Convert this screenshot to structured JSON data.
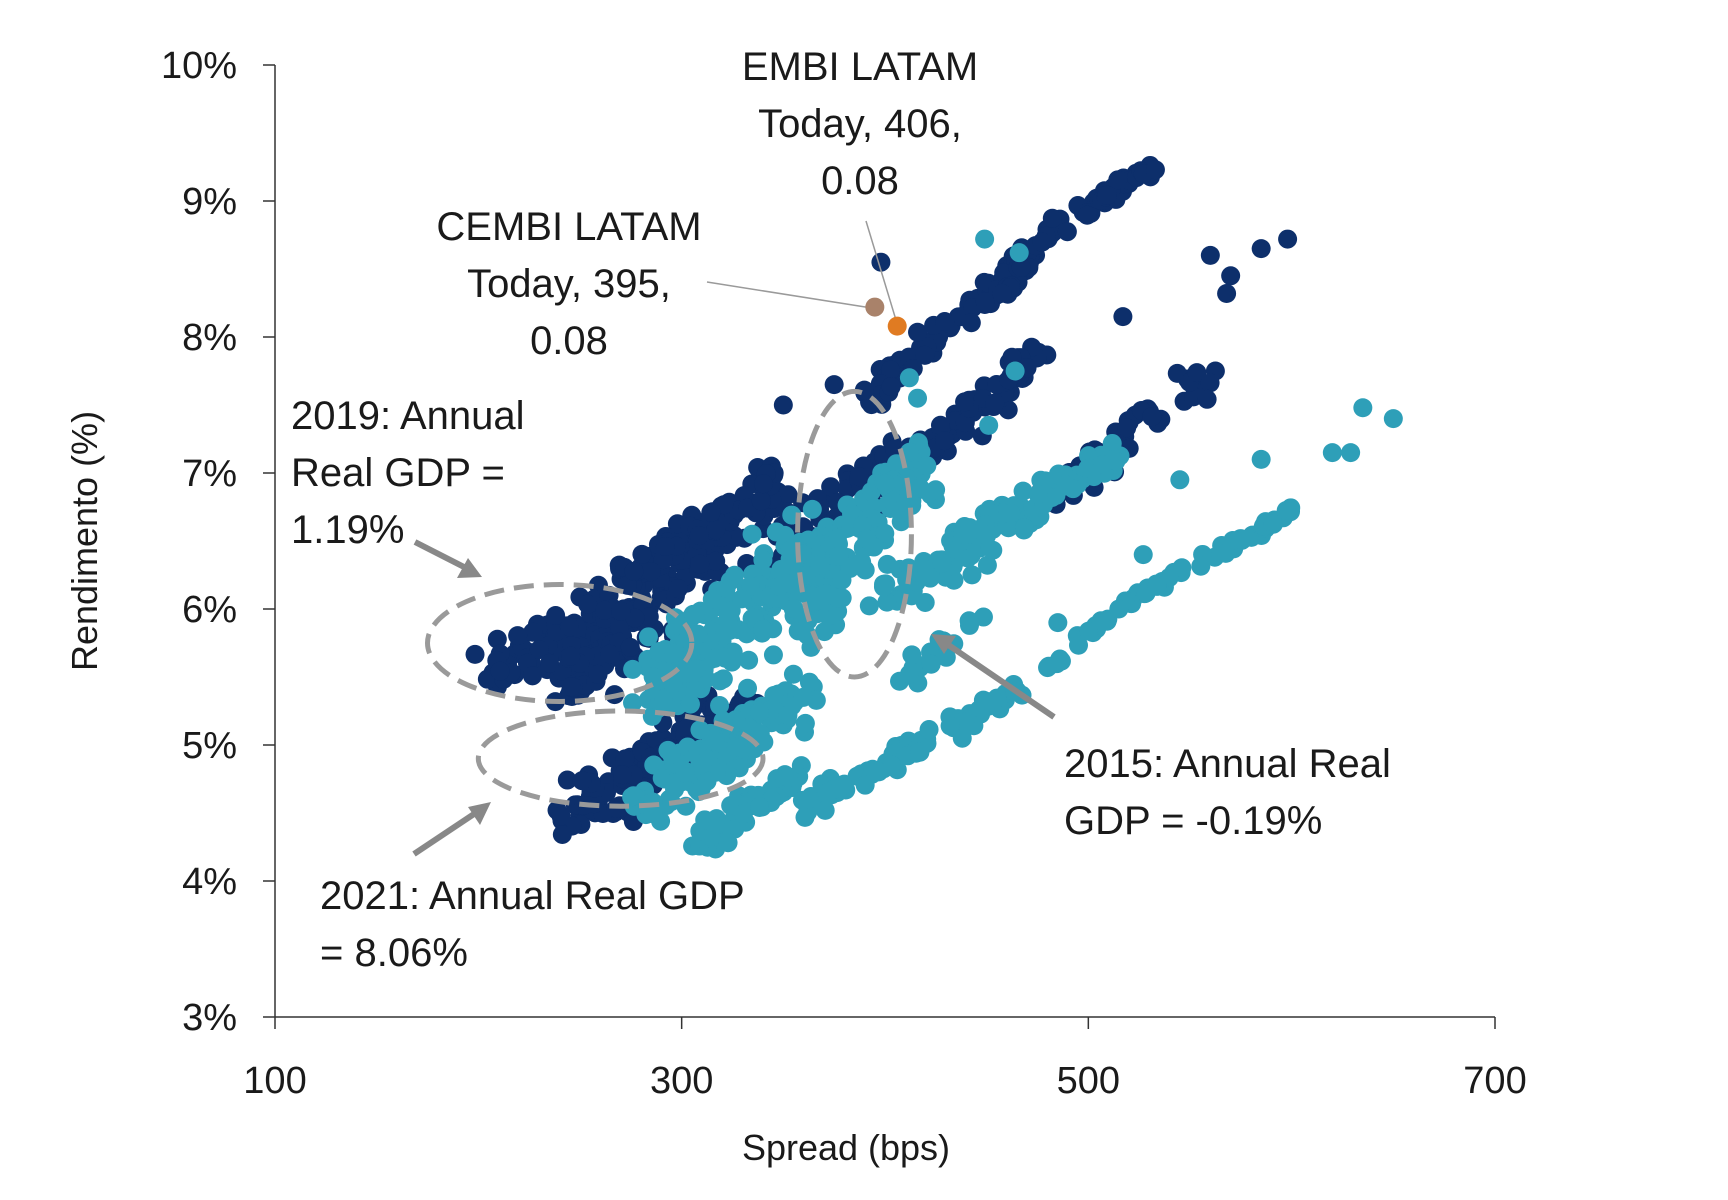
{
  "chart_data": {
    "type": "scatter",
    "xlabel": "Spread (bps)",
    "ylabel": "Rendimento (%)",
    "xlim": [
      100,
      700
    ],
    "ylim": [
      3,
      10
    ],
    "x_ticks": [
      100,
      300,
      500,
      700
    ],
    "x_tick_labels": [
      "100",
      "300",
      "500",
      "700"
    ],
    "y_ticks": [
      3,
      4,
      5,
      6,
      7,
      8,
      9,
      10
    ],
    "y_tick_labels": [
      "3%",
      "4%",
      "5%",
      "6%",
      "7%",
      "8%",
      "9%",
      "10%"
    ],
    "grid": false,
    "colors": {
      "series_embi": "#0d2f6b",
      "series_cembi": "#2e9fb8",
      "point_embi_today": "#e07b22",
      "point_cembi_today": "#a9826a",
      "ellipse": "#9a9a9a",
      "arrow": "#888888",
      "leader": "#9a9a9a"
    },
    "series": [
      {
        "name": "EMBI LATAM",
        "color": "#0d2f6b",
        "clusters": [
          {
            "from": [
              205,
              5.55
            ],
            "to": [
              260,
              5.95
            ],
            "n": 70,
            "spread": 0.18
          },
          {
            "from": [
              240,
              5.4
            ],
            "to": [
              330,
              6.6
            ],
            "n": 130,
            "spread": 0.22
          },
          {
            "from": [
              270,
              6.2
            ],
            "to": [
              350,
              6.95
            ],
            "n": 90,
            "spread": 0.15
          },
          {
            "from": [
              245,
              4.45
            ],
            "to": [
              330,
              5.3
            ],
            "n": 150,
            "spread": 0.2
          },
          {
            "from": [
              340,
              6.3
            ],
            "to": [
              410,
              7.2
            ],
            "n": 70,
            "spread": 0.18
          },
          {
            "from": [
              390,
              7.5
            ],
            "to": [
              470,
              8.6
            ],
            "n": 80,
            "spread": 0.12
          },
          {
            "from": [
              400,
              6.9
            ],
            "to": [
              480,
              7.9
            ],
            "n": 70,
            "spread": 0.12
          },
          {
            "from": [
              455,
              8.3
            ],
            "to": [
              485,
              8.85
            ],
            "n": 30,
            "spread": 0.08
          },
          {
            "from": [
              480,
              6.8
            ],
            "to": [
              560,
              7.75
            ],
            "n": 50,
            "spread": 0.12
          },
          {
            "from": [
              495,
              8.9
            ],
            "to": [
              530,
              9.25
            ],
            "n": 35,
            "spread": 0.06
          }
        ],
        "points": [
          [
            398,
            8.55
          ],
          [
            350,
            7.5
          ],
          [
            375,
            7.65
          ],
          [
            517,
            8.15
          ],
          [
            560,
            8.6
          ],
          [
            570,
            8.45
          ],
          [
            568,
            8.32
          ],
          [
            585,
            8.65
          ],
          [
            598,
            8.72
          ],
          [
            527,
            9.2
          ],
          [
            533,
            9.23
          ]
        ]
      },
      {
        "name": "CEMBI LATAM",
        "color": "#2e9fb8",
        "clusters": [
          {
            "from": [
              285,
              5.4
            ],
            "to": [
              370,
              6.5
            ],
            "n": 200,
            "spread": 0.3
          },
          {
            "from": [
              360,
              6.0
            ],
            "to": [
              420,
              7.1
            ],
            "n": 140,
            "spread": 0.25
          },
          {
            "from": [
              280,
              4.55
            ],
            "to": [
              360,
              5.4
            ],
            "n": 130,
            "spread": 0.2
          },
          {
            "from": [
              310,
              4.3
            ],
            "to": [
              360,
              4.8
            ],
            "n": 60,
            "spread": 0.12
          },
          {
            "from": [
              400,
              6.1
            ],
            "to": [
              470,
              6.7
            ],
            "n": 70,
            "spread": 0.15
          },
          {
            "from": [
              440,
              6.55
            ],
            "to": [
              515,
              7.15
            ],
            "n": 60,
            "spread": 0.1
          },
          {
            "from": [
              360,
              4.55
            ],
            "to": [
              470,
              5.45
            ],
            "n": 70,
            "spread": 0.08
          },
          {
            "from": [
              480,
              5.55
            ],
            "to": [
              510,
              5.95
            ],
            "n": 14,
            "spread": 0.05
          },
          {
            "from": [
              520,
              6.05
            ],
            "to": [
              600,
              6.72
            ],
            "n": 45,
            "spread": 0.05
          },
          {
            "from": [
              410,
              5.5
            ],
            "to": [
              450,
              6.0
            ],
            "n": 20,
            "spread": 0.08
          }
        ],
        "points": [
          [
            449,
            8.72
          ],
          [
            466,
            8.62
          ],
          [
            416,
            7.55
          ],
          [
            451,
            7.35
          ],
          [
            464,
            7.75
          ],
          [
            412,
            7.7
          ],
          [
            650,
            7.4
          ],
          [
            635,
            7.48
          ],
          [
            629,
            7.15
          ],
          [
            620,
            7.15
          ],
          [
            585,
            7.1
          ],
          [
            545,
            6.95
          ],
          [
            438,
            5.05
          ],
          [
            527,
            6.4
          ],
          [
            485,
            5.9
          ],
          [
            515,
            6.0
          ]
        ]
      }
    ],
    "highlights": [
      {
        "name": "EMBI LATAM Today",
        "x": 406,
        "y": 8.08,
        "color": "#e07b22"
      },
      {
        "name": "CEMBI LATAM Today",
        "x": 395,
        "y": 8.22,
        "color": "#a9826a"
      }
    ],
    "ellipses": [
      {
        "name": "2019",
        "cx": 240,
        "cy": 5.75,
        "rx": 65,
        "ry": 0.43
      },
      {
        "name": "2021",
        "cx": 270,
        "cy": 4.9,
        "rx": 70,
        "ry": 0.35
      },
      {
        "name": "2015",
        "cx": 385,
        "cy": 6.55,
        "rx": 28,
        "ry": 1.05
      }
    ],
    "annotations": {
      "embi_lines": [
        "EMBI LATAM",
        "Today, 406,",
        "0.08"
      ],
      "cembi_lines": [
        "CEMBI LATAM",
        "Today, 395,",
        "0.08"
      ],
      "gdp2019_lines": [
        "2019: Annual",
        "Real GDP =",
        "1.19%"
      ],
      "gdp2021_lines": [
        "2021: Annual Real GDP",
        "= 8.06%"
      ],
      "gdp2015_lines": [
        "2015: Annual Real",
        "GDP = -0.19%"
      ]
    }
  }
}
